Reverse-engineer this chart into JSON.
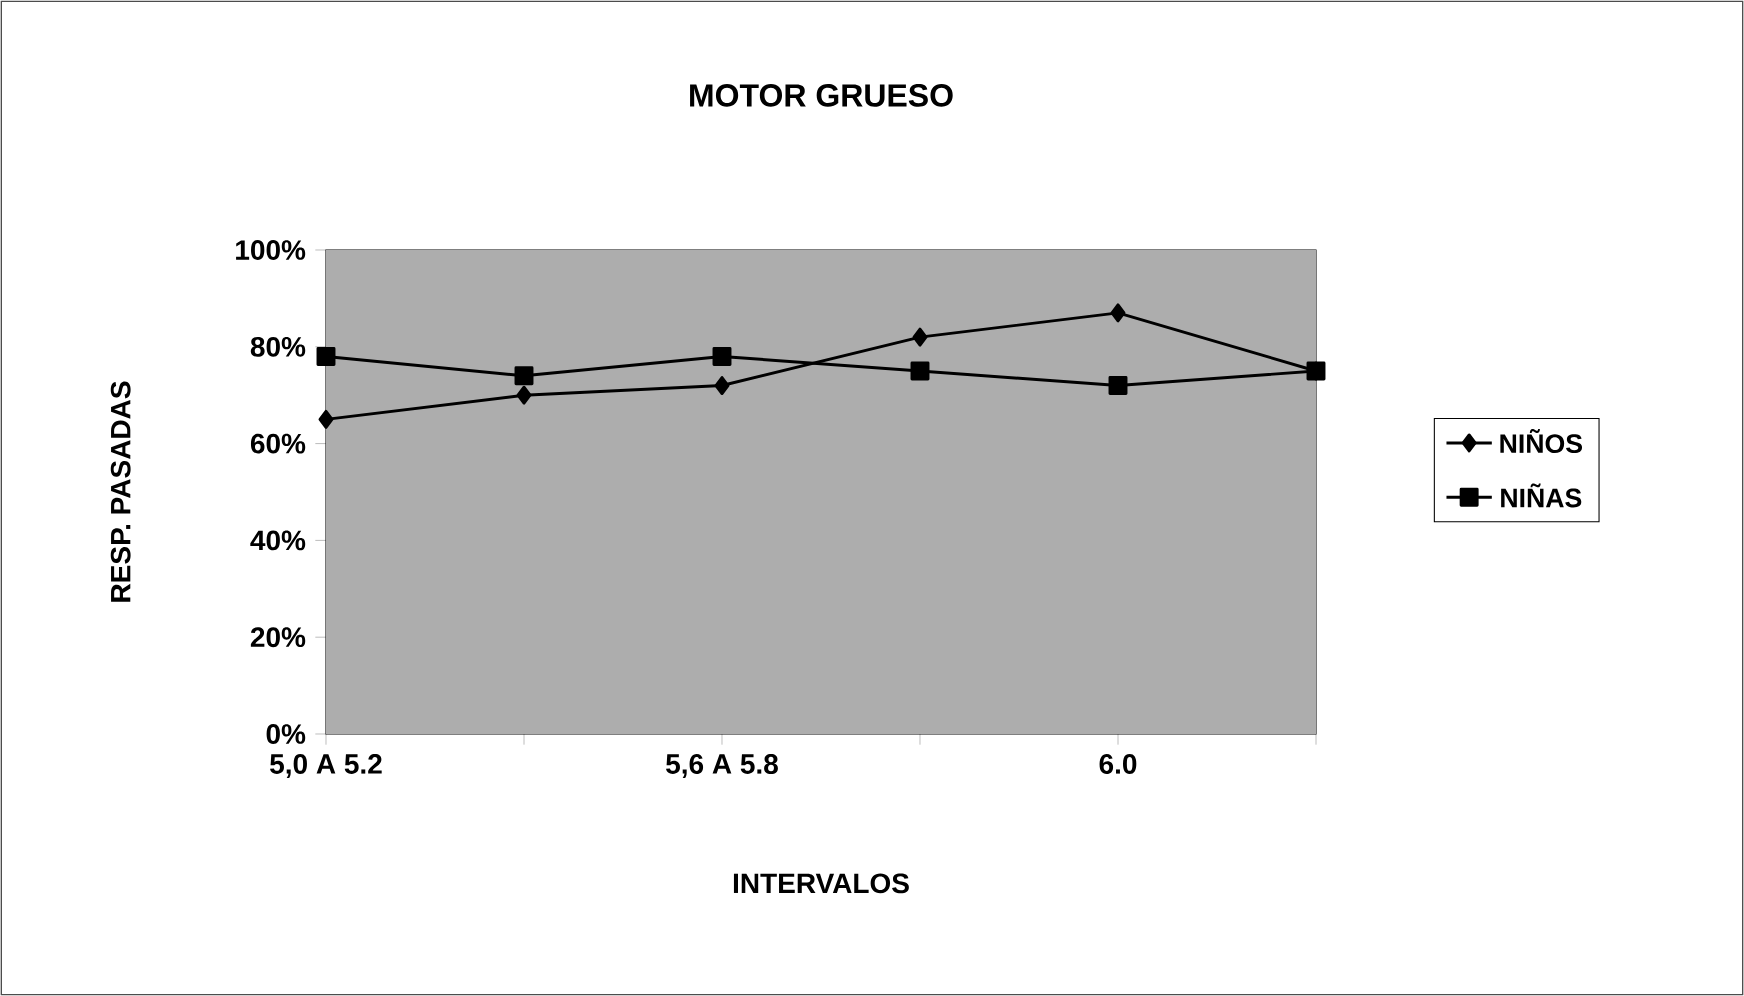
{
  "chart_data": {
    "type": "line",
    "title": "MOTOR GRUESO",
    "xlabel": "INTERVALOS",
    "ylabel": "RESP. PASADAS",
    "categories": [
      "5,0 A 5.2",
      null,
      "5,6 A 5.8",
      null,
      "6.0",
      null
    ],
    "series": [
      {
        "name": "NIÑOS",
        "color": "#000000",
        "marker": "diamond",
        "values": [
          65,
          70,
          72,
          82,
          87,
          75
        ]
      },
      {
        "name": "NIÑAS",
        "color": "#000000",
        "marker": "square",
        "values": [
          78,
          74,
          78,
          75,
          72,
          75
        ]
      }
    ],
    "ylim": [
      0,
      100
    ],
    "yticks": [
      {
        "value": 0,
        "label": "0%"
      },
      {
        "value": 20,
        "label": "20%"
      },
      {
        "value": 40,
        "label": "40%"
      },
      {
        "value": 60,
        "label": "60%"
      },
      {
        "value": 80,
        "label": "80%"
      },
      {
        "value": 100,
        "label": "100%"
      }
    ],
    "grid": false,
    "legend": "right",
    "line_style": "solid"
  }
}
